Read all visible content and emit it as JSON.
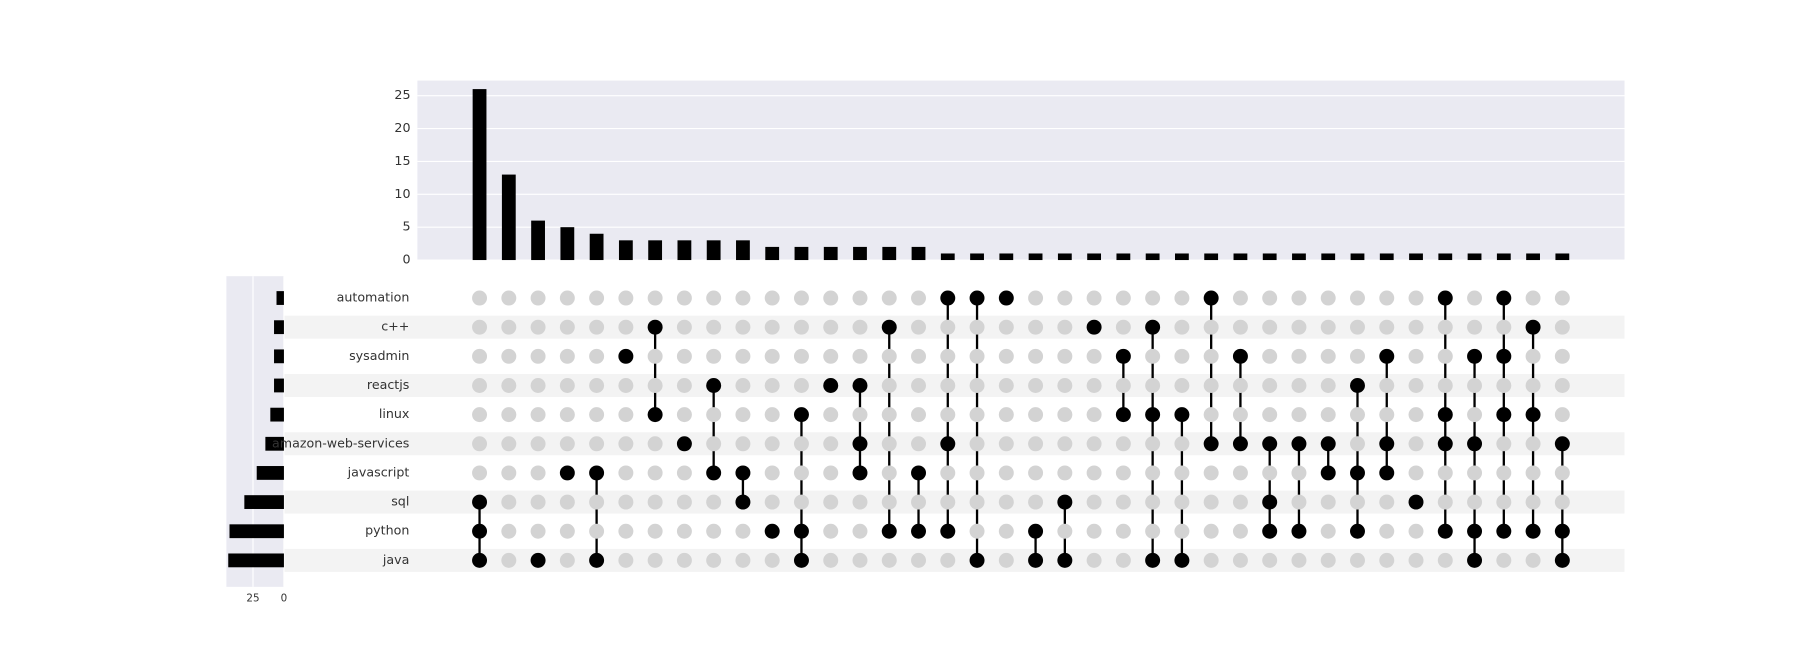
{
  "chart_data": {
    "type": "upset",
    "sets": [
      "automation",
      "c++",
      "sysadmin",
      "reactjs",
      "linux",
      "amazon-web-services",
      "javascript",
      "sql",
      "python",
      "java"
    ],
    "set_sizes": [
      6,
      8,
      8,
      8,
      11,
      15,
      22,
      32,
      44,
      45
    ],
    "set_xlim": [
      0,
      46.5
    ],
    "set_xticks": [
      25,
      0
    ],
    "intersection_sizes": [
      26,
      13,
      6,
      5,
      4,
      3,
      3,
      3,
      3,
      3,
      2,
      2,
      2,
      2,
      2,
      2,
      1,
      1,
      1,
      1,
      1,
      1,
      1,
      1,
      1,
      1,
      1,
      1,
      1,
      1,
      1,
      1,
      1,
      1,
      1,
      1,
      1,
      1
    ],
    "ylim": [
      0,
      27.3
    ],
    "yticks": [
      0,
      5,
      10,
      15,
      20,
      25
    ],
    "grid": true,
    "color": "#000000",
    "inactive_color": "#d3d3d3",
    "membership": [
      [
        0,
        0,
        0,
        0,
        0,
        0,
        0,
        1,
        1,
        1
      ],
      [
        0,
        0,
        0,
        0,
        0,
        0,
        0,
        0,
        0,
        0
      ],
      [
        0,
        0,
        0,
        0,
        0,
        0,
        0,
        0,
        0,
        1
      ],
      [
        0,
        0,
        0,
        0,
        0,
        0,
        1,
        0,
        0,
        0
      ],
      [
        0,
        0,
        0,
        0,
        0,
        0,
        1,
        0,
        0,
        1
      ],
      [
        0,
        0,
        1,
        0,
        0,
        0,
        0,
        0,
        0,
        0
      ],
      [
        0,
        1,
        0,
        0,
        1,
        0,
        0,
        0,
        0,
        0
      ],
      [
        0,
        0,
        0,
        0,
        0,
        1,
        0,
        0,
        0,
        0
      ],
      [
        0,
        0,
        0,
        1,
        0,
        0,
        1,
        0,
        0,
        0
      ],
      [
        0,
        0,
        0,
        0,
        0,
        0,
        1,
        1,
        0,
        0
      ],
      [
        0,
        0,
        0,
        0,
        0,
        0,
        0,
        0,
        1,
        0
      ],
      [
        0,
        0,
        0,
        0,
        1,
        0,
        0,
        0,
        1,
        1
      ],
      [
        0,
        0,
        0,
        1,
        0,
        0,
        0,
        0,
        0,
        0
      ],
      [
        0,
        0,
        0,
        1,
        0,
        1,
        1,
        0,
        0,
        0
      ],
      [
        0,
        1,
        0,
        0,
        0,
        0,
        0,
        0,
        1,
        0
      ],
      [
        0,
        0,
        0,
        0,
        0,
        0,
        1,
        0,
        1,
        0
      ],
      [
        1,
        0,
        0,
        0,
        0,
        1,
        0,
        0,
        1,
        0
      ],
      [
        1,
        0,
        0,
        0,
        0,
        0,
        0,
        0,
        0,
        1
      ],
      [
        1,
        0,
        0,
        0,
        0,
        0,
        0,
        0,
        0,
        0
      ],
      [
        0,
        0,
        0,
        0,
        0,
        0,
        0,
        0,
        1,
        1
      ],
      [
        0,
        0,
        0,
        0,
        0,
        0,
        0,
        1,
        0,
        1
      ],
      [
        0,
        1,
        0,
        0,
        0,
        0,
        0,
        0,
        0,
        0
      ],
      [
        0,
        0,
        1,
        0,
        1,
        0,
        0,
        0,
        0,
        0
      ],
      [
        0,
        1,
        0,
        0,
        1,
        0,
        0,
        0,
        0,
        1
      ],
      [
        0,
        0,
        0,
        0,
        1,
        0,
        0,
        0,
        0,
        1
      ],
      [
        1,
        0,
        0,
        0,
        0,
        1,
        0,
        0,
        0,
        0
      ],
      [
        0,
        0,
        1,
        0,
        0,
        1,
        0,
        0,
        0,
        0
      ],
      [
        0,
        0,
        0,
        0,
        0,
        1,
        0,
        1,
        1,
        0
      ],
      [
        0,
        0,
        0,
        0,
        0,
        1,
        0,
        0,
        1,
        0
      ],
      [
        0,
        0,
        0,
        0,
        0,
        1,
        1,
        0,
        0,
        0
      ],
      [
        0,
        0,
        0,
        1,
        0,
        0,
        1,
        0,
        1,
        0
      ],
      [
        0,
        0,
        1,
        0,
        0,
        1,
        1,
        0,
        0,
        0
      ],
      [
        0,
        0,
        0,
        0,
        0,
        0,
        0,
        1,
        0,
        0
      ],
      [
        1,
        0,
        0,
        0,
        1,
        1,
        0,
        0,
        1,
        0
      ],
      [
        0,
        0,
        1,
        0,
        0,
        1,
        0,
        0,
        1,
        1
      ],
      [
        1,
        0,
        1,
        0,
        1,
        0,
        0,
        0,
        1,
        0
      ],
      [
        0,
        1,
        0,
        0,
        1,
        0,
        0,
        0,
        1,
        0
      ],
      [
        0,
        0,
        0,
        0,
        0,
        1,
        0,
        0,
        1,
        1
      ]
    ]
  }
}
